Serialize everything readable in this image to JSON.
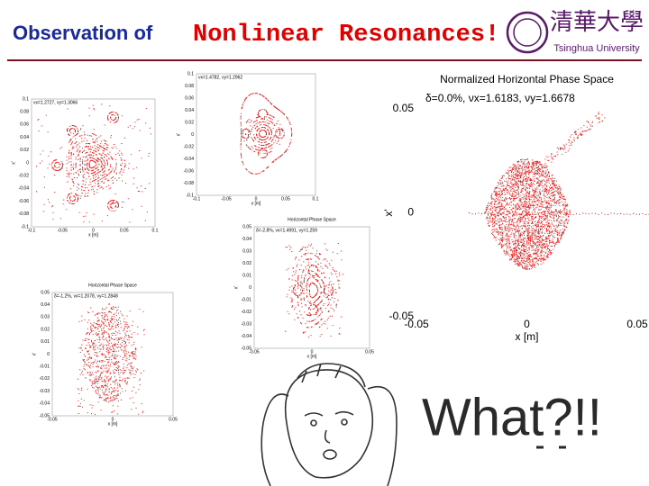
{
  "header": {
    "title_lead": "Observation of",
    "title_main": "Nonlinear Resonances!",
    "logo_cn": "清華大學",
    "logo_en": "Tsinghua University"
  },
  "plots": [
    {
      "subtitle": "νx=1.2727, νy=1.3066",
      "xlabel": "x [m]",
      "ylabel": "x'",
      "xticks": [
        -0.1,
        -0.05,
        0,
        0.05,
        0.1
      ],
      "yticks": [
        0.1,
        0.08,
        0.06,
        0.04,
        0.02,
        0,
        -0.02,
        -0.04,
        -0.06,
        -0.08,
        -0.1
      ]
    },
    {
      "subtitle": "νx=1.4782, νy=1.2962",
      "xlabel": "x [m]",
      "ylabel": "x'",
      "xticks": [
        -0.1,
        -0.05,
        0,
        0.05,
        0.1
      ],
      "yticks": [
        0.1,
        0.08,
        0.06,
        0.04,
        0.02,
        0,
        -0.02,
        -0.04,
        -0.06,
        -0.08,
        -0.1
      ]
    },
    {
      "title": "Horizontal Phase Space",
      "subtitle": "δ=-2.8%, νx=1.4991, νy=1.259",
      "xlabel": "x [m]",
      "ylabel": "x'",
      "xticks": [
        -0.05,
        0,
        0.05
      ],
      "yticks": [
        0.05,
        0.04,
        0.03,
        0.02,
        0.01,
        0,
        -0.01,
        -0.02,
        -0.03,
        -0.04,
        -0.05
      ]
    },
    {
      "title": "Horizontal Phase Space",
      "subtitle": "δ=-1.2%, νx=1.2078, νy=1.2848",
      "xlabel": "x [m]",
      "ylabel": "x'",
      "xticks": [
        -0.05,
        0,
        0.05
      ],
      "yticks": [
        0.05,
        0.04,
        0.03,
        0.02,
        0.01,
        0,
        -0.01,
        -0.02,
        -0.03,
        -0.04,
        -0.05
      ]
    },
    {
      "title": "Normalized Horizontal Phase Space",
      "subtitle": "δ=0.0%, νx=1.6183, νy=1.6678",
      "xlabel": "x [m]",
      "ylabel": "x'",
      "xticks": [
        -0.05,
        0,
        0.05
      ],
      "yticks": [
        0.05,
        0,
        -0.05
      ]
    }
  ],
  "meme_text": "What?!!"
}
